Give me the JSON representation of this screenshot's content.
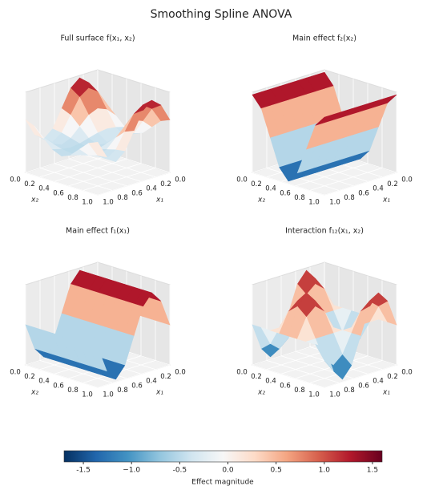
{
  "title": "Smoothing Spline ANOVA",
  "chart_data": [
    {
      "type": "surface",
      "title": "Full surface f(x₁, x₂)",
      "xlabel": "x₁",
      "ylabel": "x₂",
      "x": [
        0,
        0.125,
        0.25,
        0.375,
        0.5,
        0.625,
        0.75,
        0.875,
        1
      ],
      "y": [
        0,
        0.125,
        0.25,
        0.375,
        0.5,
        0.625,
        0.75,
        0.875,
        1
      ],
      "z": [
        [
          0.5,
          0.35,
          0,
          -0.35,
          -0.5,
          -0.35,
          0,
          0.35,
          0.5
        ],
        [
          1.2,
          0.95,
          0.35,
          -0.25,
          -0.5,
          -0.25,
          0.35,
          0.95,
          1.2
        ],
        [
          1.5,
          1.2,
          0.5,
          -0.2,
          -0.5,
          -0.2,
          0.5,
          1.2,
          1.5
        ],
        [
          1.2,
          0.95,
          0.35,
          -0.25,
          -0.5,
          -0.25,
          0.35,
          0.95,
          1.2
        ],
        [
          0.5,
          0.35,
          0,
          -0.35,
          -0.5,
          -0.35,
          0,
          0.35,
          0.5
        ],
        [
          -0.2,
          -0.25,
          -0.35,
          -0.45,
          -0.5,
          -0.45,
          -0.35,
          -0.25,
          -0.2
        ],
        [
          -0.5,
          -0.5,
          -0.5,
          -0.5,
          -0.5,
          -0.5,
          -0.5,
          -0.5,
          -0.5
        ],
        [
          -0.2,
          -0.25,
          -0.35,
          -0.45,
          -0.5,
          -0.45,
          -0.35,
          -0.25,
          -0.2
        ],
        [
          0.5,
          0.35,
          0,
          -0.35,
          -0.5,
          -0.35,
          0,
          0.35,
          0.5
        ]
      ],
      "xlim": [
        0,
        1
      ],
      "ylim": [
        0,
        1
      ],
      "zlim": [
        -1.6,
        1.6
      ],
      "xticks": [
        {
          "value": 0,
          "label": "0.0"
        },
        0.2,
        0.4,
        0.6,
        0.8,
        {
          "value": 1,
          "label": "1.0"
        }
      ],
      "yticks": [
        {
          "value": 0,
          "label": "0.0"
        },
        0.2,
        0.4,
        0.6,
        0.8,
        {
          "value": 1,
          "label": "1.0"
        }
      ]
    },
    {
      "type": "surface",
      "title": "Main effect f₂(x₂)",
      "xlabel": "x₁",
      "ylabel": "x₂",
      "x": [
        0,
        0.125,
        0.25,
        0.375,
        0.5,
        0.625,
        0.75,
        0.875,
        1
      ],
      "y": [
        0,
        0.125,
        0.25,
        0.375,
        0.5,
        0.625,
        0.75,
        0.875,
        1
      ],
      "z": [
        [
          1.5,
          1.06,
          0,
          -1.06,
          -1.5,
          -1.06,
          0,
          1.06,
          1.5
        ],
        [
          1.5,
          1.06,
          0,
          -1.06,
          -1.5,
          -1.06,
          0,
          1.06,
          1.5
        ],
        [
          1.5,
          1.06,
          0,
          -1.06,
          -1.5,
          -1.06,
          0,
          1.06,
          1.5
        ],
        [
          1.5,
          1.06,
          0,
          -1.06,
          -1.5,
          -1.06,
          0,
          1.06,
          1.5
        ],
        [
          1.5,
          1.06,
          0,
          -1.06,
          -1.5,
          -1.06,
          0,
          1.06,
          1.5
        ],
        [
          1.5,
          1.06,
          0,
          -1.06,
          -1.5,
          -1.06,
          0,
          1.06,
          1.5
        ],
        [
          1.5,
          1.06,
          0,
          -1.06,
          -1.5,
          -1.06,
          0,
          1.06,
          1.5
        ],
        [
          1.5,
          1.06,
          0,
          -1.06,
          -1.5,
          -1.06,
          0,
          1.06,
          1.5
        ],
        [
          1.5,
          1.06,
          0,
          -1.06,
          -1.5,
          -1.06,
          0,
          1.06,
          1.5
        ]
      ],
      "xlim": [
        0,
        1
      ],
      "ylim": [
        0,
        1
      ],
      "zlim": [
        -1.6,
        1.6
      ],
      "xticks": [
        {
          "value": 0,
          "label": "0.0"
        },
        0.2,
        0.4,
        0.6,
        0.8,
        {
          "value": 1,
          "label": "1.0"
        }
      ],
      "yticks": [
        {
          "value": 0,
          "label": "0.0"
        },
        0.2,
        0.4,
        0.6,
        0.8,
        {
          "value": 1,
          "label": "1.0"
        }
      ]
    },
    {
      "type": "surface",
      "title": "Main effect f₁(x₁)",
      "xlabel": "x₁",
      "ylabel": "x₂",
      "x": [
        0,
        0.125,
        0.25,
        0.375,
        0.5,
        0.625,
        0.75,
        0.875,
        1
      ],
      "y": [
        0,
        0.125,
        0.25,
        0.375,
        0.5,
        0.625,
        0.75,
        0.875,
        1
      ],
      "z": [
        [
          0,
          0,
          0,
          0,
          0,
          0,
          0,
          0,
          0
        ],
        [
          1.06,
          1.06,
          1.06,
          1.06,
          1.06,
          1.06,
          1.06,
          1.06,
          1.06
        ],
        [
          1.5,
          1.5,
          1.5,
          1.5,
          1.5,
          1.5,
          1.5,
          1.5,
          1.5
        ],
        [
          1.06,
          1.06,
          1.06,
          1.06,
          1.06,
          1.06,
          1.06,
          1.06,
          1.06
        ],
        [
          0,
          0,
          0,
          0,
          0,
          0,
          0,
          0,
          0
        ],
        [
          -1.06,
          -1.06,
          -1.06,
          -1.06,
          -1.06,
          -1.06,
          -1.06,
          -1.06,
          -1.06
        ],
        [
          -1.5,
          -1.5,
          -1.5,
          -1.5,
          -1.5,
          -1.5,
          -1.5,
          -1.5,
          -1.5
        ],
        [
          -1.06,
          -1.06,
          -1.06,
          -1.06,
          -1.06,
          -1.06,
          -1.06,
          -1.06,
          -1.06
        ],
        [
          0,
          0,
          0,
          0,
          0,
          0,
          0,
          0,
          0
        ]
      ],
      "xlim": [
        0,
        1
      ],
      "ylim": [
        0,
        1
      ],
      "zlim": [
        -1.6,
        1.6
      ],
      "xticks": [
        {
          "value": 0,
          "label": "0.0"
        },
        0.2,
        0.4,
        0.6,
        0.8,
        {
          "value": 1,
          "label": "1.0"
        }
      ],
      "yticks": [
        {
          "value": 0,
          "label": "0.0"
        },
        0.2,
        0.4,
        0.6,
        0.8,
        {
          "value": 1,
          "label": "1.0"
        }
      ]
    },
    {
      "type": "surface",
      "title": "Interaction f₁₂(x₁, x₂)",
      "xlabel": "x₁",
      "ylabel": "x₂",
      "x": [
        0,
        0.125,
        0.25,
        0.375,
        0.5,
        0.625,
        0.75,
        0.875,
        1
      ],
      "y": [
        0,
        0.125,
        0.25,
        0.375,
        0.5,
        0.625,
        0.75,
        0.875,
        1
      ],
      "z": [
        [
          0,
          0,
          0,
          0,
          0,
          0,
          0,
          0,
          0
        ],
        [
          1.06,
          0.75,
          0,
          -0.75,
          -1.06,
          -0.75,
          0,
          0.75,
          1.06
        ],
        [
          1.5,
          1.06,
          0,
          -1.06,
          -1.5,
          -1.06,
          0,
          1.06,
          1.5
        ],
        [
          1.06,
          0.75,
          0,
          -0.75,
          -1.06,
          -0.75,
          0,
          0.75,
          1.06
        ],
        [
          0,
          0,
          0,
          0,
          0,
          0,
          0,
          0,
          0
        ],
        [
          -1.06,
          -0.75,
          0,
          0.75,
          1.06,
          0.75,
          0,
          -0.75,
          -1.06
        ],
        [
          -1.5,
          -1.06,
          0,
          1.06,
          1.5,
          1.06,
          0,
          -1.06,
          -1.5
        ],
        [
          -1.06,
          -0.75,
          0,
          0.75,
          1.06,
          0.75,
          0,
          -0.75,
          -1.06
        ],
        [
          0,
          0,
          0,
          0,
          0,
          0,
          0,
          0,
          0
        ]
      ],
      "xlim": [
        0,
        1
      ],
      "ylim": [
        0,
        1
      ],
      "zlim": [
        -1.6,
        1.6
      ],
      "xticks": [
        {
          "value": 0,
          "label": "0.0"
        },
        0.2,
        0.4,
        0.6,
        0.8,
        {
          "value": 1,
          "label": "1.0"
        }
      ],
      "yticks": [
        {
          "value": 0,
          "label": "0.0"
        },
        0.2,
        0.4,
        0.6,
        0.8,
        {
          "value": 1,
          "label": "1.0"
        }
      ]
    }
  ],
  "colorbar": {
    "label": "Effect magnitude",
    "cmap": "RdBu_r",
    "lim": [
      -1.7,
      1.6
    ],
    "ticks": [
      -1.5,
      {
        "value": -1,
        "label": "−1.0"
      },
      -0.5,
      {
        "value": 0,
        "label": "0.0"
      },
      0.5,
      {
        "value": 1,
        "label": "1.0"
      },
      1.5
    ]
  }
}
